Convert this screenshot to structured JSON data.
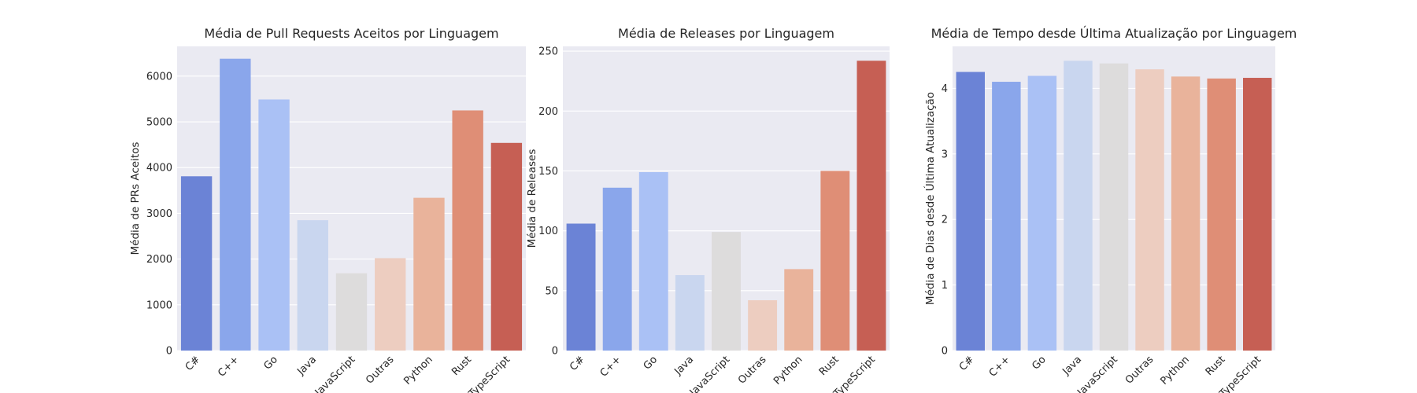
{
  "chart_data": [
    {
      "type": "bar",
      "title": "Média de Pull Requests Aceitos por Linguagem",
      "xlabel": "",
      "ylabel": "Média de PRs Aceitos",
      "categories": [
        "C#",
        "C++",
        "Go",
        "Java",
        "JavaScript",
        "Outras",
        "Python",
        "Rust",
        "TypeScript"
      ],
      "values": [
        3810,
        6380,
        5490,
        2850,
        1690,
        2020,
        3340,
        5250,
        4540
      ],
      "ylim": [
        0,
        6650
      ],
      "yticks": [
        0,
        1000,
        2000,
        3000,
        4000,
        5000,
        6000
      ],
      "grid": true
    },
    {
      "type": "bar",
      "title": "Média de Releases por Linguagem",
      "xlabel": "",
      "ylabel": "Média de Releases",
      "categories": [
        "C#",
        "C++",
        "Go",
        "Java",
        "JavaScript",
        "Outras",
        "Python",
        "Rust",
        "TypeScript"
      ],
      "values": [
        106,
        136,
        149,
        63,
        99,
        42,
        68,
        150,
        242
      ],
      "ylim": [
        0,
        254
      ],
      "yticks": [
        0,
        50,
        100,
        150,
        200,
        250
      ],
      "grid": true
    },
    {
      "type": "bar",
      "title": "Média de Tempo desde Última Atualização por Linguagem",
      "xlabel": "",
      "ylabel": "Média de Dias desde Última Atualização",
      "categories": [
        "C#",
        "C++",
        "Go",
        "Java",
        "JavaScript",
        "Outras",
        "Python",
        "Rust",
        "TypeScript"
      ],
      "values": [
        4.25,
        4.1,
        4.19,
        4.42,
        4.38,
        4.29,
        4.18,
        4.15,
        4.16
      ],
      "ylim": [
        0,
        4.64
      ],
      "yticks": [
        0,
        1,
        2,
        3,
        4
      ],
      "grid": true
    }
  ],
  "colors": {
    "palette": [
      "#6b83d6",
      "#8aa6eb",
      "#aac1f5",
      "#c9d6ef",
      "#dddcdc",
      "#edcdc0",
      "#e9b39b",
      "#df8e76",
      "#c65f54"
    ],
    "axes_background": "#eaeaf2",
    "grid": "#ffffff",
    "text": "#262626"
  }
}
